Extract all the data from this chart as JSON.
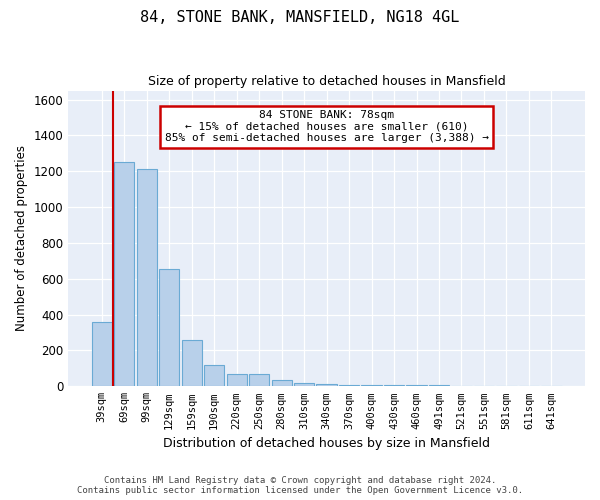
{
  "title": "84, STONE BANK, MANSFIELD, NG18 4GL",
  "subtitle": "Size of property relative to detached houses in Mansfield",
  "xlabel": "Distribution of detached houses by size in Mansfield",
  "ylabel": "Number of detached properties",
  "categories": [
    "39sqm",
    "69sqm",
    "99sqm",
    "129sqm",
    "159sqm",
    "190sqm",
    "220sqm",
    "250sqm",
    "280sqm",
    "310sqm",
    "340sqm",
    "370sqm",
    "400sqm",
    "430sqm",
    "460sqm",
    "491sqm",
    "521sqm",
    "551sqm",
    "581sqm",
    "611sqm",
    "641sqm"
  ],
  "values": [
    360,
    1250,
    1210,
    655,
    260,
    120,
    70,
    70,
    33,
    20,
    15,
    10,
    10,
    8,
    5,
    5,
    3,
    3,
    3,
    3,
    3
  ],
  "bar_color": "#b8d0ea",
  "bar_edge_color": "#6aaad4",
  "background_color": "#e8eef8",
  "grid_color": "#ffffff",
  "fig_bg_color": "#ffffff",
  "annotation_box_facecolor": "#ffffff",
  "annotation_border_color": "#cc0000",
  "red_line_x": 0.5,
  "annotation_text_line1": "84 STONE BANK: 78sqm",
  "annotation_text_line2": "← 15% of detached houses are smaller (610)",
  "annotation_text_line3": "85% of semi-detached houses are larger (3,388) →",
  "ylim": [
    0,
    1650
  ],
  "yticks": [
    0,
    200,
    400,
    600,
    800,
    1000,
    1200,
    1400,
    1600
  ],
  "footer_line1": "Contains HM Land Registry data © Crown copyright and database right 2024.",
  "footer_line2": "Contains public sector information licensed under the Open Government Licence v3.0."
}
